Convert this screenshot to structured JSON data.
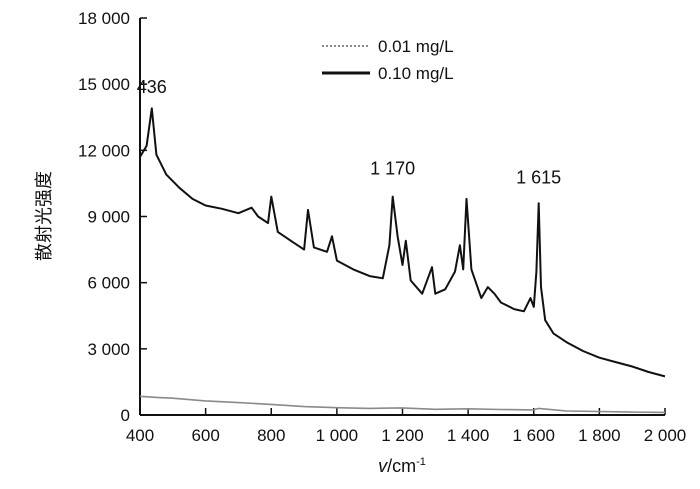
{
  "chart_data": {
    "type": "line",
    "title": "",
    "xlabel_var": "v",
    "xlabel_unit": "/cm",
    "xlabel_sup": "-1",
    "ylabel": "散射光强度",
    "xlim": [
      400,
      2000
    ],
    "ylim": [
      0,
      18000
    ],
    "grid": false,
    "legend_position": "top-center",
    "x_ticks": [
      400,
      600,
      800,
      1000,
      1200,
      1400,
      1600,
      1800,
      2000
    ],
    "x_tick_labels": [
      "400",
      "600",
      "800",
      "1 000",
      "1 200",
      "1 400",
      "1 600",
      "1 800",
      "2 000"
    ],
    "y_ticks": [
      0,
      3000,
      6000,
      9000,
      12000,
      15000,
      18000
    ],
    "y_tick_labels": [
      "0",
      "3 000",
      "6 000",
      "9 000",
      "12 000",
      "15 000",
      "18 000"
    ],
    "series": [
      {
        "name": "0.01 mg/L",
        "color": "#8a8a8a",
        "style": "dotted",
        "x": [
          400,
          450,
          500,
          600,
          700,
          800,
          900,
          1000,
          1100,
          1200,
          1300,
          1400,
          1500,
          1600,
          1615,
          1700,
          1800,
          1900,
          2000
        ],
        "y": [
          850,
          800,
          760,
          640,
          560,
          480,
          380,
          330,
          300,
          320,
          260,
          280,
          250,
          230,
          300,
          180,
          160,
          130,
          120
        ]
      },
      {
        "name": "0.10 mg/L",
        "color": "#111111",
        "style": "solid",
        "x": [
          400,
          420,
          436,
          450,
          480,
          520,
          560,
          600,
          650,
          700,
          740,
          760,
          790,
          800,
          820,
          860,
          900,
          912,
          930,
          970,
          985,
          1000,
          1050,
          1100,
          1140,
          1160,
          1170,
          1185,
          1200,
          1210,
          1225,
          1260,
          1290,
          1300,
          1330,
          1360,
          1375,
          1385,
          1395,
          1410,
          1440,
          1460,
          1480,
          1500,
          1540,
          1570,
          1590,
          1600,
          1608,
          1615,
          1622,
          1635,
          1660,
          1700,
          1750,
          1800,
          1850,
          1900,
          1950,
          2000
        ],
        "y": [
          11700,
          12200,
          13900,
          11800,
          10900,
          10300,
          9800,
          9500,
          9350,
          9150,
          9400,
          9000,
          8700,
          9900,
          8300,
          7900,
          7500,
          9300,
          7600,
          7400,
          8100,
          7000,
          6600,
          6300,
          6200,
          7700,
          9900,
          8100,
          6800,
          7900,
          6100,
          5500,
          6700,
          5500,
          5700,
          6500,
          7700,
          6600,
          9800,
          6600,
          5300,
          5800,
          5500,
          5100,
          4800,
          4700,
          5300,
          4900,
          6500,
          9600,
          5800,
          4300,
          3700,
          3300,
          2900,
          2600,
          2400,
          2200,
          1950,
          1750
        ]
      }
    ],
    "annotations": [
      {
        "text": "436",
        "x": 436,
        "y": 14600
      },
      {
        "text": "1 170",
        "x": 1170,
        "y": 10900
      },
      {
        "text": "1 615",
        "x": 1615,
        "y": 10500
      }
    ]
  }
}
